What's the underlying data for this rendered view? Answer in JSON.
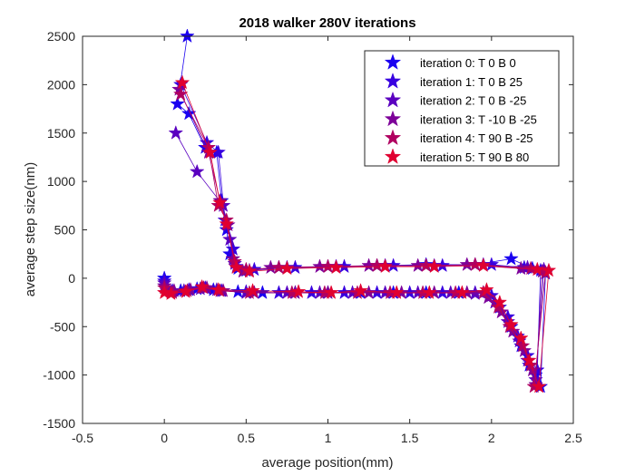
{
  "chart_data": {
    "type": "line",
    "title": "2018 walker 280V iterations",
    "xlabel": "average position(mm)",
    "ylabel": "average step size(nm)",
    "xlim": [
      -0.5,
      2.5
    ],
    "ylim": [
      -1500,
      2500
    ],
    "xticks": [
      "-0.5",
      "0",
      "0.5",
      "1",
      "1.5",
      "2",
      "2.5"
    ],
    "yticks": [
      "-1500",
      "-1000",
      "-500",
      "0",
      "500",
      "1000",
      "1500",
      "2000",
      "2500"
    ],
    "grid": false,
    "legend_position": "top-right",
    "marker": "pentagram",
    "series": [
      {
        "name": "iteration 0: T 0 B 0",
        "color": "#1a00f0",
        "points": [
          [
            0,
            0
          ],
          [
            0.02,
            -120
          ],
          [
            0.1,
            -130
          ],
          [
            0.2,
            -110
          ],
          [
            0.3,
            -120
          ],
          [
            0.45,
            -140
          ],
          [
            0.6,
            -150
          ],
          [
            0.8,
            -150
          ],
          [
            1.0,
            -150
          ],
          [
            1.2,
            -150
          ],
          [
            1.4,
            -150
          ],
          [
            1.6,
            -150
          ],
          [
            1.8,
            -150
          ],
          [
            1.95,
            -150
          ],
          [
            2.05,
            -300
          ],
          [
            2.12,
            -500
          ],
          [
            2.18,
            -700
          ],
          [
            2.23,
            -900
          ],
          [
            2.27,
            -1000
          ],
          [
            2.3,
            -1120
          ],
          [
            2.33,
            50
          ],
          [
            2.25,
            100
          ],
          [
            2.12,
            200
          ],
          [
            1.9,
            140
          ],
          [
            1.6,
            140
          ],
          [
            1.3,
            130
          ],
          [
            1.0,
            120
          ],
          [
            0.7,
            110
          ],
          [
            0.5,
            80
          ],
          [
            0.45,
            100
          ],
          [
            0.4,
            250
          ],
          [
            0.38,
            500
          ],
          [
            0.35,
            800
          ],
          [
            0.32,
            1300
          ],
          [
            0.25,
            1350
          ],
          [
            0.15,
            1700
          ],
          [
            0.08,
            1800
          ],
          [
            0.14,
            2500
          ]
        ]
      },
      {
        "name": "iteration 1: T 0 B 25",
        "color": "#3700e0",
        "points": [
          [
            0,
            -30
          ],
          [
            0.05,
            -130
          ],
          [
            0.15,
            -120
          ],
          [
            0.25,
            -100
          ],
          [
            0.35,
            -130
          ],
          [
            0.5,
            -140
          ],
          [
            0.7,
            -150
          ],
          [
            0.9,
            -150
          ],
          [
            1.1,
            -150
          ],
          [
            1.3,
            -150
          ],
          [
            1.5,
            -150
          ],
          [
            1.7,
            -150
          ],
          [
            1.9,
            -150
          ],
          [
            2.0,
            -180
          ],
          [
            2.1,
            -400
          ],
          [
            2.16,
            -600
          ],
          [
            2.22,
            -800
          ],
          [
            2.28,
            -950
          ],
          [
            2.3,
            80
          ],
          [
            2.2,
            110
          ],
          [
            2.0,
            140
          ],
          [
            1.7,
            130
          ],
          [
            1.4,
            130
          ],
          [
            1.1,
            120
          ],
          [
            0.8,
            110
          ],
          [
            0.55,
            90
          ],
          [
            0.44,
            120
          ],
          [
            0.42,
            300
          ],
          [
            0.37,
            600
          ],
          [
            0.33,
            1300
          ],
          [
            0.26,
            1400
          ],
          [
            0.1,
            2000
          ]
        ]
      },
      {
        "name": "iteration 2: T 0 B -25",
        "color": "#5a00c0",
        "points": [
          [
            0,
            -50
          ],
          [
            0.04,
            -140
          ],
          [
            0.12,
            -130
          ],
          [
            0.22,
            -110
          ],
          [
            0.32,
            -120
          ],
          [
            0.5,
            -150
          ],
          [
            0.75,
            -150
          ],
          [
            0.95,
            -150
          ],
          [
            1.15,
            -150
          ],
          [
            1.35,
            -150
          ],
          [
            1.55,
            -150
          ],
          [
            1.75,
            -150
          ],
          [
            1.9,
            -160
          ],
          [
            2.02,
            -250
          ],
          [
            2.1,
            -450
          ],
          [
            2.17,
            -650
          ],
          [
            2.22,
            -850
          ],
          [
            2.27,
            -1050
          ],
          [
            2.32,
            90
          ],
          [
            2.22,
            110
          ],
          [
            1.95,
            140
          ],
          [
            1.65,
            130
          ],
          [
            1.35,
            130
          ],
          [
            1.05,
            120
          ],
          [
            0.75,
            110
          ],
          [
            0.52,
            80
          ],
          [
            0.43,
            150
          ],
          [
            0.4,
            400
          ],
          [
            0.36,
            750
          ],
          [
            0.2,
            1100
          ],
          [
            0.07,
            1500
          ]
        ]
      },
      {
        "name": "iteration 3: T -10 B -25",
        "color": "#7d0099",
        "points": [
          [
            0,
            -80
          ],
          [
            0.06,
            -130
          ],
          [
            0.16,
            -120
          ],
          [
            0.26,
            -100
          ],
          [
            0.36,
            -130
          ],
          [
            0.55,
            -150
          ],
          [
            0.8,
            -150
          ],
          [
            1.0,
            -150
          ],
          [
            1.25,
            -150
          ],
          [
            1.45,
            -150
          ],
          [
            1.65,
            -150
          ],
          [
            1.85,
            -150
          ],
          [
            1.98,
            -200
          ],
          [
            2.06,
            -350
          ],
          [
            2.13,
            -550
          ],
          [
            2.2,
            -750
          ],
          [
            2.25,
            -950
          ],
          [
            2.27,
            -1100
          ],
          [
            2.31,
            70
          ],
          [
            2.18,
            100
          ],
          [
            1.85,
            140
          ],
          [
            1.55,
            130
          ],
          [
            1.25,
            130
          ],
          [
            0.95,
            120
          ],
          [
            0.65,
            110
          ],
          [
            0.48,
            70
          ],
          [
            0.42,
            200
          ],
          [
            0.39,
            550
          ],
          [
            0.34,
            800
          ],
          [
            0.27,
            1300
          ],
          [
            0.09,
            1950
          ]
        ]
      },
      {
        "name": "iteration 4: T 90 B -25",
        "color": "#b00060",
        "points": [
          [
            0,
            -100
          ],
          [
            0.05,
            -150
          ],
          [
            0.14,
            -130
          ],
          [
            0.24,
            -100
          ],
          [
            0.34,
            -130
          ],
          [
            0.52,
            -150
          ],
          [
            0.78,
            -150
          ],
          [
            0.98,
            -150
          ],
          [
            1.18,
            -150
          ],
          [
            1.38,
            -150
          ],
          [
            1.58,
            -150
          ],
          [
            1.78,
            -150
          ],
          [
            1.95,
            -150
          ],
          [
            2.04,
            -300
          ],
          [
            2.11,
            -500
          ],
          [
            2.19,
            -700
          ],
          [
            2.24,
            -900
          ],
          [
            2.26,
            -1120
          ],
          [
            2.33,
            60
          ],
          [
            2.24,
            100
          ],
          [
            1.9,
            140
          ],
          [
            1.6,
            130
          ],
          [
            1.3,
            130
          ],
          [
            1.0,
            120
          ],
          [
            0.7,
            110
          ],
          [
            0.5,
            90
          ],
          [
            0.43,
            170
          ],
          [
            0.38,
            600
          ],
          [
            0.33,
            750
          ],
          [
            0.27,
            1350
          ],
          [
            0.1,
            1900
          ]
        ]
      },
      {
        "name": "iteration 5: T 90 B 80",
        "color": "#e00030",
        "points": [
          [
            0,
            -150
          ],
          [
            0.04,
            -160
          ],
          [
            0.13,
            -140
          ],
          [
            0.23,
            -90
          ],
          [
            0.33,
            -120
          ],
          [
            0.54,
            -130
          ],
          [
            0.82,
            -140
          ],
          [
            1.02,
            -150
          ],
          [
            1.2,
            -130
          ],
          [
            1.42,
            -150
          ],
          [
            1.62,
            -150
          ],
          [
            1.82,
            -150
          ],
          [
            1.97,
            -120
          ],
          [
            2.05,
            -250
          ],
          [
            2.12,
            -480
          ],
          [
            2.18,
            -620
          ],
          [
            2.23,
            -850
          ],
          [
            2.29,
            -1120
          ],
          [
            2.35,
            80
          ],
          [
            2.28,
            90
          ],
          [
            1.95,
            130
          ],
          [
            1.65,
            120
          ],
          [
            1.35,
            120
          ],
          [
            1.05,
            110
          ],
          [
            0.75,
            100
          ],
          [
            0.52,
            70
          ],
          [
            0.44,
            110
          ],
          [
            0.38,
            560
          ],
          [
            0.34,
            780
          ],
          [
            0.28,
            1300
          ],
          [
            0.11,
            2020
          ]
        ]
      }
    ]
  }
}
